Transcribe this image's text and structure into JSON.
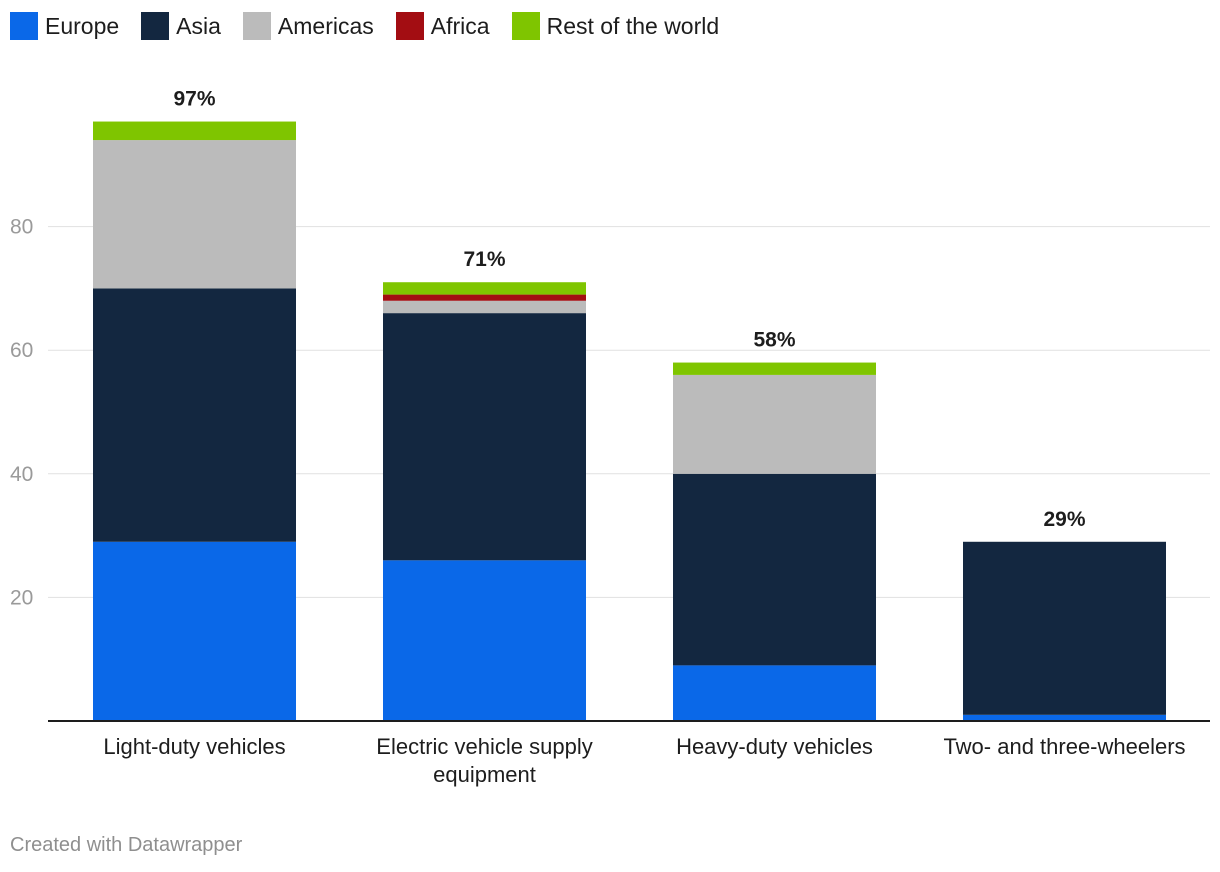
{
  "chart_data": {
    "type": "bar",
    "stacked": true,
    "categories": [
      [
        "Light-duty vehicles"
      ],
      [
        "Electric vehicle supply",
        "equipment"
      ],
      [
        "Heavy-duty vehicles"
      ],
      [
        "Two- and three-wheelers"
      ]
    ],
    "series": [
      {
        "name": "Europe",
        "color": "#0a68e8",
        "values": [
          29,
          26,
          9,
          1
        ]
      },
      {
        "name": "Asia",
        "color": "#132740",
        "values": [
          41,
          40,
          31,
          28
        ]
      },
      {
        "name": "Americas",
        "color": "#bbbbbb",
        "values": [
          24,
          2,
          16,
          0
        ]
      },
      {
        "name": "Africa",
        "color": "#a30d12",
        "values": [
          0,
          1,
          0,
          0
        ]
      },
      {
        "name": "Rest of the world",
        "color": "#7fc500",
        "values": [
          3,
          2,
          2,
          0
        ]
      }
    ],
    "totals": [
      "97%",
      "71%",
      "58%",
      "29%"
    ],
    "y_ticks": [
      20,
      40,
      60,
      80
    ],
    "ylim": [
      0,
      100
    ],
    "grid": true,
    "legend_position": "top-left"
  },
  "footer": {
    "credit": "Created with Datawrapper"
  }
}
